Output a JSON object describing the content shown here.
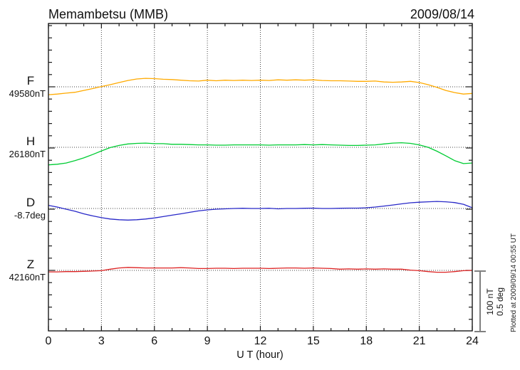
{
  "header": {
    "title": "Memambetsu (MMB)",
    "date": "2009/08/14"
  },
  "chart_data": {
    "type": "line",
    "title": "Memambetsu (MMB)",
    "date": "2009/08/14",
    "xlabel": "U T (hour)",
    "x_range": [
      0,
      24
    ],
    "x_tick_labels": [
      "0",
      "3",
      "6",
      "9",
      "12",
      "15",
      "18",
      "21",
      "24"
    ],
    "x_major_ticks": [
      0,
      3,
      6,
      9,
      12,
      15,
      18,
      21,
      24
    ],
    "x_minor_step": 1,
    "gridline_hours": [
      3,
      6,
      9,
      12,
      15,
      18,
      21
    ],
    "grid": "dotted vertical at 3h intervals, dotted horizontal at each channel baseline",
    "footnote": "Plotted at 2009/09/14 00:55 UT",
    "scale_bar": {
      "labels": [
        "100 nT",
        "0.5 deg"
      ],
      "span_nT": 100,
      "span_deg": 0.5
    },
    "series": [
      {
        "id": "F",
        "label": "F",
        "reference": "49580nT",
        "unit": "nT",
        "color": "#FFAA00",
        "points": [
          [
            0,
            -13
          ],
          [
            0.5,
            -12
          ],
          [
            1,
            -10.5
          ],
          [
            1.5,
            -9
          ],
          [
            2,
            -6
          ],
          [
            2.5,
            -3
          ],
          [
            3,
            0.5
          ],
          [
            3.5,
            3.5
          ],
          [
            4,
            7
          ],
          [
            4.5,
            10.5
          ],
          [
            5,
            13
          ],
          [
            5.5,
            14
          ],
          [
            6,
            13.5
          ],
          [
            6.5,
            12.5
          ],
          [
            7,
            12
          ],
          [
            7.5,
            11
          ],
          [
            8,
            10
          ],
          [
            8.5,
            9.5
          ],
          [
            9,
            11
          ],
          [
            9.5,
            10
          ],
          [
            10,
            11
          ],
          [
            10.5,
            10.5
          ],
          [
            11,
            11
          ],
          [
            11.5,
            10.5
          ],
          [
            12,
            11
          ],
          [
            12.5,
            10.5
          ],
          [
            13,
            11.5
          ],
          [
            13.5,
            11
          ],
          [
            14,
            11.5
          ],
          [
            14.5,
            11
          ],
          [
            15,
            11.5
          ],
          [
            15.5,
            10.5
          ],
          [
            16,
            10
          ],
          [
            16.5,
            10
          ],
          [
            17,
            9.5
          ],
          [
            17.5,
            9
          ],
          [
            18,
            9
          ],
          [
            18.5,
            9.5
          ],
          [
            19,
            8
          ],
          [
            19.5,
            7.5
          ],
          [
            20,
            8
          ],
          [
            20.5,
            9
          ],
          [
            21,
            7
          ],
          [
            21.5,
            3.5
          ],
          [
            22,
            -1
          ],
          [
            22.5,
            -6
          ],
          [
            23,
            -9.5
          ],
          [
            23.5,
            -12
          ],
          [
            24,
            -11
          ]
        ]
      },
      {
        "id": "H",
        "label": "H",
        "reference": "26180nT",
        "unit": "nT",
        "color": "#00CC33",
        "points": [
          [
            0,
            -29
          ],
          [
            0.5,
            -28
          ],
          [
            1,
            -26
          ],
          [
            1.5,
            -22
          ],
          [
            2,
            -17.5
          ],
          [
            2.5,
            -12
          ],
          [
            3,
            -6
          ],
          [
            3.5,
            -0.5
          ],
          [
            4,
            3
          ],
          [
            4.5,
            5.5
          ],
          [
            5,
            6.5
          ],
          [
            5.5,
            7
          ],
          [
            6,
            6
          ],
          [
            6.5,
            6
          ],
          [
            7,
            5
          ],
          [
            7.5,
            5
          ],
          [
            8,
            4.5
          ],
          [
            8.5,
            4
          ],
          [
            9,
            4
          ],
          [
            9.5,
            3.5
          ],
          [
            10,
            3.5
          ],
          [
            10.5,
            4
          ],
          [
            11,
            4
          ],
          [
            11.5,
            4
          ],
          [
            12,
            4
          ],
          [
            12.5,
            3.5
          ],
          [
            13,
            4
          ],
          [
            13.5,
            4
          ],
          [
            14,
            4
          ],
          [
            14.5,
            4.5
          ],
          [
            15,
            4
          ],
          [
            15.5,
            4.5
          ],
          [
            16,
            4
          ],
          [
            16.5,
            3.5
          ],
          [
            17,
            3
          ],
          [
            17.5,
            3
          ],
          [
            18,
            3.5
          ],
          [
            18.5,
            4
          ],
          [
            19,
            5.5
          ],
          [
            19.5,
            7
          ],
          [
            20,
            7.5
          ],
          [
            20.5,
            6.5
          ],
          [
            21,
            4
          ],
          [
            21.5,
            0
          ],
          [
            22,
            -6.5
          ],
          [
            22.5,
            -14
          ],
          [
            23,
            -22
          ],
          [
            23.5,
            -27
          ],
          [
            24,
            -26
          ]
        ]
      },
      {
        "id": "D",
        "label": "D",
        "reference": "-8.7deg",
        "unit": "deg",
        "color": "#2828C8",
        "points": [
          [
            0,
            0.026
          ],
          [
            0.5,
            0.012
          ],
          [
            1,
            -0.006
          ],
          [
            1.5,
            -0.023
          ],
          [
            2,
            -0.044
          ],
          [
            2.5,
            -0.061
          ],
          [
            3,
            -0.076
          ],
          [
            3.5,
            -0.087
          ],
          [
            4,
            -0.093
          ],
          [
            4.5,
            -0.096
          ],
          [
            5,
            -0.093
          ],
          [
            5.5,
            -0.087
          ],
          [
            6,
            -0.078
          ],
          [
            6.5,
            -0.067
          ],
          [
            7,
            -0.055
          ],
          [
            7.5,
            -0.044
          ],
          [
            8,
            -0.032
          ],
          [
            8.5,
            -0.02
          ],
          [
            9,
            -0.012
          ],
          [
            9.5,
            -0.006
          ],
          [
            10,
            -0.003
          ],
          [
            10.5,
            0
          ],
          [
            11,
            0.002
          ],
          [
            11.5,
            0
          ],
          [
            12,
            0
          ],
          [
            12.5,
            0.002
          ],
          [
            13,
            -0.003
          ],
          [
            13.5,
            0
          ],
          [
            14,
            0
          ],
          [
            14.5,
            0.002
          ],
          [
            15,
            0.003
          ],
          [
            15.5,
            0
          ],
          [
            16,
            0
          ],
          [
            16.5,
            0.002
          ],
          [
            17,
            0.003
          ],
          [
            17.5,
            0.003
          ],
          [
            18,
            0.006
          ],
          [
            18.5,
            0.012
          ],
          [
            19,
            0.02
          ],
          [
            19.5,
            0.029
          ],
          [
            20,
            0.038
          ],
          [
            20.5,
            0.047
          ],
          [
            21,
            0.052
          ],
          [
            21.5,
            0.055
          ],
          [
            22,
            0.058
          ],
          [
            22.5,
            0.055
          ],
          [
            23,
            0.049
          ],
          [
            23.5,
            0.035
          ],
          [
            24,
            0.006
          ]
        ]
      },
      {
        "id": "Z",
        "label": "Z",
        "reference": "42160nT",
        "unit": "nT",
        "color": "#DD2222",
        "points": [
          [
            0,
            -2.5
          ],
          [
            0.5,
            -2.5
          ],
          [
            1,
            -2
          ],
          [
            1.5,
            -2
          ],
          [
            2,
            -1.5
          ],
          [
            2.5,
            -1
          ],
          [
            3,
            -0.5
          ],
          [
            3.5,
            2
          ],
          [
            4,
            4
          ],
          [
            4.5,
            5
          ],
          [
            5,
            4.5
          ],
          [
            5.5,
            4
          ],
          [
            6,
            4
          ],
          [
            6.5,
            4
          ],
          [
            7,
            4
          ],
          [
            7.5,
            4.5
          ],
          [
            8,
            4
          ],
          [
            8.5,
            3
          ],
          [
            9,
            3
          ],
          [
            9.5,
            3.5
          ],
          [
            10,
            3.5
          ],
          [
            10.5,
            3
          ],
          [
            11,
            3.5
          ],
          [
            11.5,
            3.5
          ],
          [
            12,
            3.5
          ],
          [
            12.5,
            3
          ],
          [
            13,
            3.5
          ],
          [
            13.5,
            4
          ],
          [
            14,
            4
          ],
          [
            14.5,
            3.5
          ],
          [
            15,
            4
          ],
          [
            15.5,
            3.5
          ],
          [
            16,
            3
          ],
          [
            16.5,
            2
          ],
          [
            17,
            2.5
          ],
          [
            17.5,
            2
          ],
          [
            18,
            2.5
          ],
          [
            18.5,
            2
          ],
          [
            19,
            2.5
          ],
          [
            19.5,
            2
          ],
          [
            20,
            2
          ],
          [
            20.5,
            0.5
          ],
          [
            21,
            -0.5
          ],
          [
            21.5,
            -2
          ],
          [
            22,
            -3
          ],
          [
            22.5,
            -3
          ],
          [
            23,
            -2
          ],
          [
            23.5,
            -0.5
          ],
          [
            24,
            0
          ]
        ]
      }
    ]
  }
}
